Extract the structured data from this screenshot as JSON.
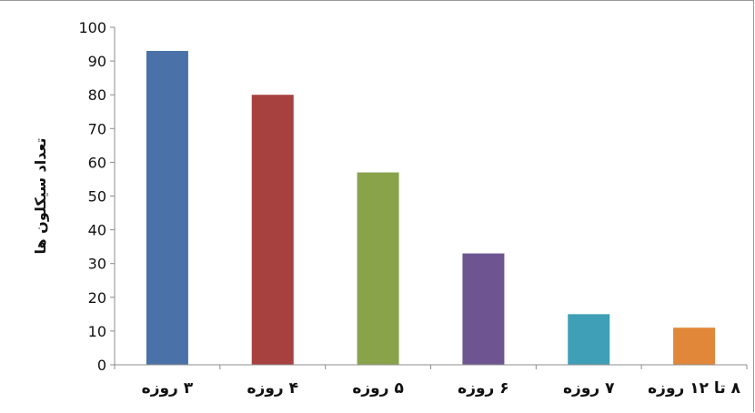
{
  "chart_data": {
    "type": "bar",
    "title": "",
    "xlabel": "",
    "ylabel": "تعداد سیکلون ها",
    "ylim": [
      0,
      100
    ],
    "yticks": [
      0,
      10,
      20,
      30,
      40,
      50,
      60,
      70,
      80,
      90,
      100
    ],
    "grid": false,
    "legend": "none",
    "categories": [
      "۳ روزه",
      "۴ روزه",
      "۵ روزه",
      "۶ روزه",
      "۷ روزه",
      "۸ تا ۱۲ روزه"
    ],
    "values": [
      93,
      80,
      57,
      33,
      15,
      11
    ],
    "colors": [
      "#4a72a8",
      "#a7413f",
      "#89a34a",
      "#6e5591",
      "#3f9fb6",
      "#e0873a"
    ]
  }
}
